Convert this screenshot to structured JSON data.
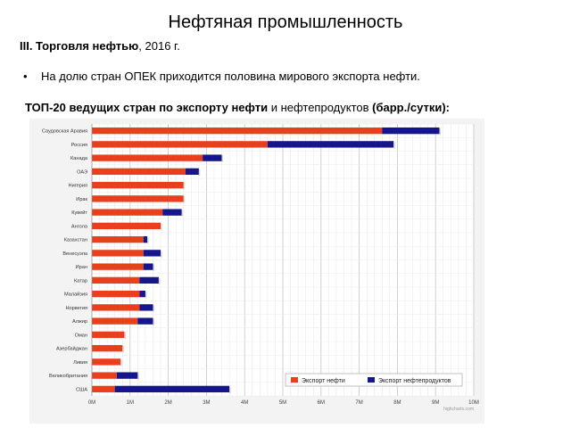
{
  "page": {
    "title": "Нефтяная промышленность",
    "section_bold": "III. Торговля нефтью",
    "section_rest": ", 2016 г.",
    "bullet": "На долю стран ОПЕК приходится половина мирового экспорта нефти.",
    "chart_heading_bold1": "ТОП-20 ведущих стран по экспорту нефти",
    "chart_heading_mid": " и нефтепродуктов ",
    "chart_heading_bold2": "(барр./сутки):"
  },
  "chart_data": {
    "type": "bar",
    "orientation": "horizontal",
    "stacked": true,
    "categories": [
      "Саудовская Аравия",
      "Россия",
      "Канада",
      "ОАЭ",
      "Нигерия",
      "Ирак",
      "Кувейт",
      "Ангола",
      "Казахстан",
      "Венесуэла",
      "Иран",
      "Катар",
      "Малайзия",
      "Норвегия",
      "Алжир",
      "Оман",
      "Азербайджан",
      "Ливия",
      "Великобритания",
      "США"
    ],
    "series": [
      {
        "name": "Экспорт нефти",
        "color": "#e8401c",
        "values": [
          7.6,
          4.6,
          2.9,
          2.45,
          2.4,
          2.4,
          1.85,
          1.8,
          1.35,
          1.35,
          1.35,
          1.25,
          1.25,
          1.25,
          1.2,
          0.85,
          0.8,
          0.75,
          0.65,
          0.6
        ]
      },
      {
        "name": "Экспорт нефтепродуктов",
        "color": "#15158c",
        "values": [
          1.5,
          3.3,
          0.5,
          0.35,
          0,
          0,
          0.5,
          0,
          0.1,
          0.45,
          0.25,
          0.5,
          0.15,
          0.35,
          0.4,
          0,
          0,
          0,
          0.55,
          3.0
        ]
      }
    ],
    "xlim": [
      0,
      10
    ],
    "xticks": [
      "0M",
      "1M",
      "2M",
      "3M",
      "4M",
      "5M",
      "6M",
      "7M",
      "8M",
      "9M",
      "10M"
    ],
    "legend_position": "bottom-right",
    "grid": true,
    "credit": "highcharts.com"
  }
}
